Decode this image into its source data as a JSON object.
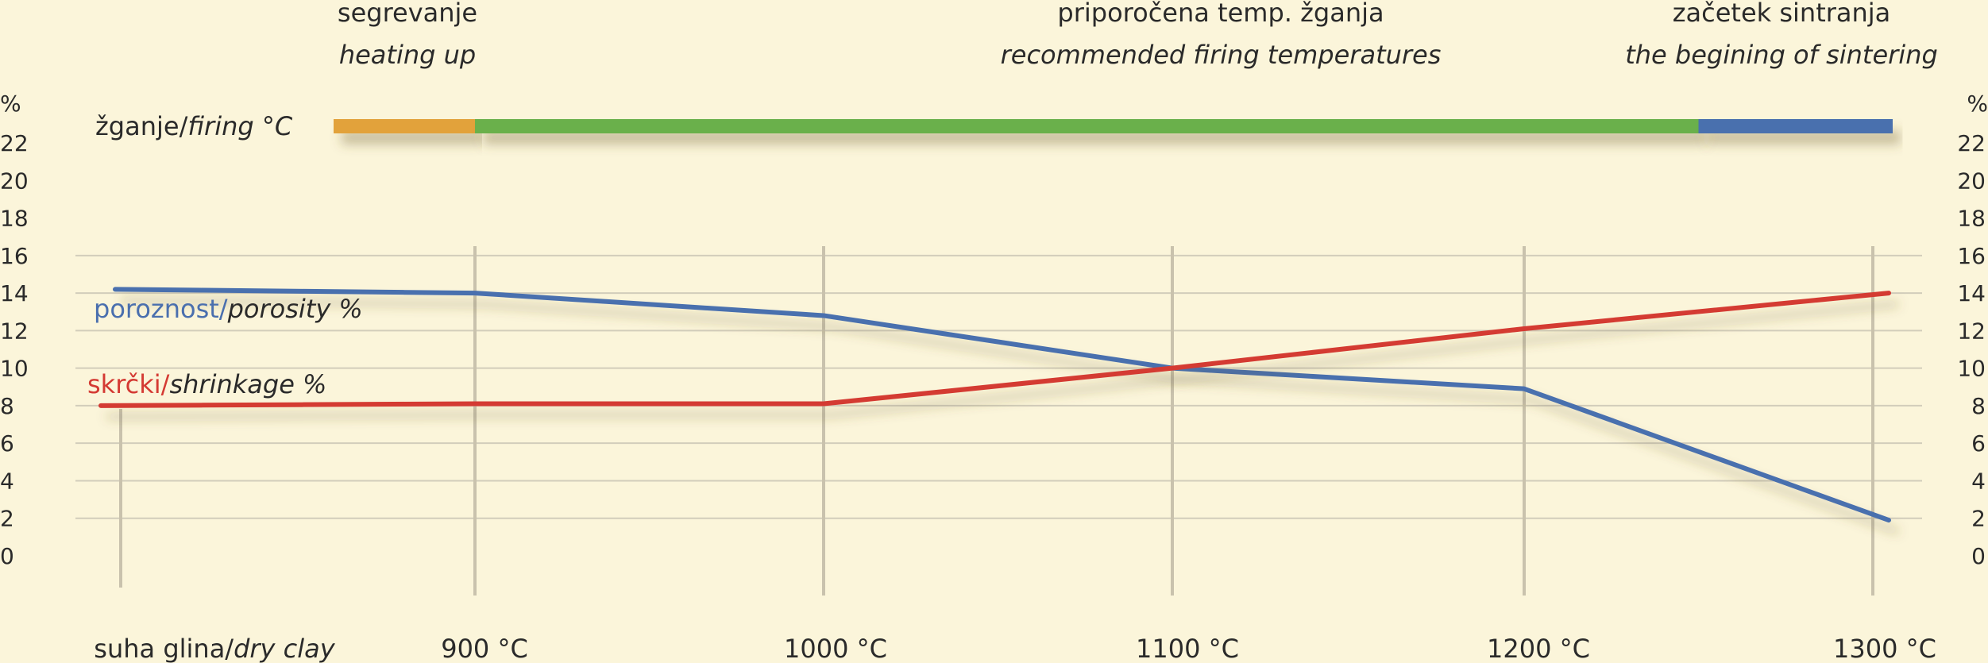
{
  "chart_data": {
    "type": "line",
    "phases": [
      {
        "title": "segrevanje",
        "subtitle": "heating up",
        "color": "#e2a23b",
        "from": 0,
        "to": 1
      },
      {
        "title": "priporočena temp. žganja",
        "subtitle": "recommended firing temperatures",
        "color": "#6ab04c",
        "from": 1,
        "to": 4.5
      },
      {
        "title": "začetek sintranja",
        "subtitle": "the begining of sintering",
        "color": "#4a6fae",
        "from": 4.5,
        "to": 5
      }
    ],
    "firing_label": {
      "main": "žganje/",
      "italic": "firing °C"
    },
    "x_categories": [
      {
        "main": "suha glina/",
        "italic": "dry clay"
      },
      {
        "main": "900 °C",
        "italic": ""
      },
      {
        "main": "1000 °C",
        "italic": ""
      },
      {
        "main": "1100 °C",
        "italic": ""
      },
      {
        "main": "1200 °C",
        "italic": ""
      },
      {
        "main": "1300 °C",
        "italic": ""
      }
    ],
    "y_unit": "%",
    "y_ticks": [
      0,
      2,
      4,
      6,
      8,
      10,
      12,
      14,
      16,
      18,
      20,
      22
    ],
    "ylim": [
      0,
      22
    ],
    "grid": true,
    "series": [
      {
        "name": "poroznost/",
        "name_italic": "porosity %",
        "color": "#4a6fae",
        "values": [
          14.2,
          14,
          12.8,
          10,
          8.9,
          1.9
        ]
      },
      {
        "name": "skrčki/",
        "name_italic": "shrinkage %",
        "color": "#d43a33",
        "values": [
          8,
          8.1,
          8.1,
          10,
          12.1,
          14
        ]
      }
    ]
  }
}
